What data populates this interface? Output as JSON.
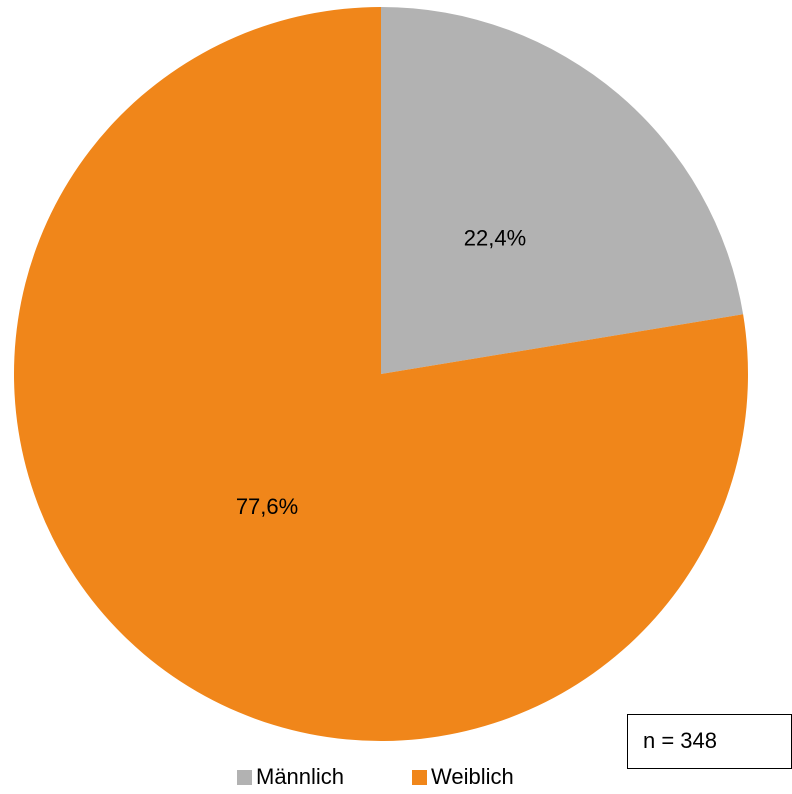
{
  "chart_data": {
    "type": "pie",
    "categories": [
      "Männlich",
      "Weiblich"
    ],
    "values": [
      22.4,
      77.6
    ],
    "value_labels": [
      "22,4%",
      "77,6%"
    ],
    "colors": [
      "#b2b2b2",
      "#f0861a"
    ],
    "annotation": "n = 348",
    "legend": "bottom"
  }
}
